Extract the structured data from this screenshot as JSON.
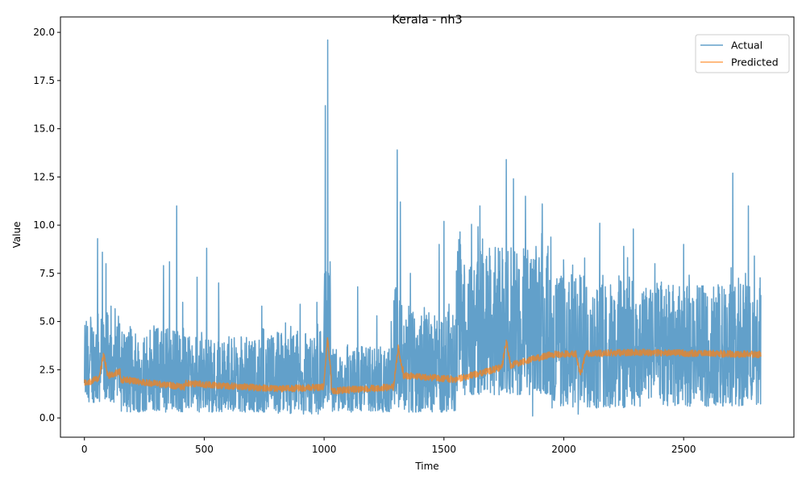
{
  "chart_data": {
    "type": "line",
    "title": "Kerala - nh3",
    "xlabel": "Time",
    "ylabel": "Value",
    "xlim": [
      -100,
      2960
    ],
    "ylim": [
      -1,
      20.8
    ],
    "xticks": [
      0,
      500,
      1000,
      1500,
      2000,
      2500
    ],
    "yticks": [
      0.0,
      2.5,
      5.0,
      7.5,
      10.0,
      12.5,
      15.0,
      17.5,
      20.0
    ],
    "xtick_labels": [
      "0",
      "500",
      "1000",
      "1500",
      "2000",
      "2500"
    ],
    "ytick_labels": [
      "0.0",
      "2.5",
      "5.0",
      "7.5",
      "10.0",
      "12.5",
      "15.0",
      "17.5",
      "20.0"
    ],
    "legend_position": "upper right",
    "grid": false,
    "series_count": 2823,
    "series": [
      {
        "name": "Actual",
        "color": "#1f77b4",
        "opacity": 0.7
      },
      {
        "name": "Predicted",
        "color": "#ff7f0e",
        "opacity": 0.7
      }
    ],
    "segments": [
      {
        "x0": 0,
        "x1": 150,
        "pred_start": 1.8,
        "pred_end": 2.4,
        "pred_peak": 3.3,
        "peak_at": 80,
        "act_range": [
          0.8,
          5.5
        ],
        "act_peaks": [
          [
            55,
            9.3
          ],
          [
            75,
            8.6
          ],
          [
            90,
            8.0
          ]
        ]
      },
      {
        "x0": 150,
        "x1": 420,
        "pred_start": 2.0,
        "pred_end": 1.6,
        "act_range": [
          0.3,
          4.8
        ],
        "act_peaks": [
          [
            330,
            7.9
          ],
          [
            355,
            8.1
          ],
          [
            385,
            11.0
          ],
          [
            410,
            6.0
          ]
        ]
      },
      {
        "x0": 420,
        "x1": 800,
        "pred_start": 1.8,
        "pred_end": 1.5,
        "act_range": [
          0.3,
          4.2
        ],
        "act_peaks": [
          [
            470,
            7.3
          ],
          [
            510,
            8.8
          ],
          [
            560,
            7.0
          ],
          [
            740,
            5.8
          ]
        ]
      },
      {
        "x0": 800,
        "x1": 1000,
        "pred_start": 1.5,
        "pred_end": 1.6,
        "act_range": [
          0.2,
          4.5
        ],
        "act_peaks": [
          [
            810,
            4.4
          ],
          [
            860,
            4.2
          ],
          [
            900,
            5.9
          ],
          [
            970,
            6.0
          ]
        ]
      },
      {
        "x0": 1000,
        "x1": 1030,
        "pred_start": 1.6,
        "pred_end": 1.6,
        "pred_peak": 4.2,
        "peak_at": 1015,
        "act_range": [
          0.3,
          8.0
        ],
        "act_peaks": [
          [
            1005,
            16.2
          ],
          [
            1015,
            19.6
          ],
          [
            1025,
            8.1
          ]
        ]
      },
      {
        "x0": 1030,
        "x1": 1290,
        "pred_start": 1.4,
        "pred_end": 1.6,
        "act_range": [
          0.3,
          3.8
        ],
        "act_peaks": [
          [
            1140,
            6.8
          ],
          [
            1220,
            5.3
          ],
          [
            1280,
            5.0
          ]
        ]
      },
      {
        "x0": 1290,
        "x1": 1330,
        "pred_start": 1.8,
        "pred_end": 2.5,
        "pred_peak": 3.7,
        "peak_at": 1310,
        "act_range": [
          0.5,
          7.0
        ],
        "act_peaks": [
          [
            1305,
            13.9
          ],
          [
            1318,
            11.2
          ]
        ]
      },
      {
        "x0": 1330,
        "x1": 1550,
        "pred_start": 2.2,
        "pred_end": 2.0,
        "act_range": [
          0.3,
          5.5
        ],
        "act_peaks": [
          [
            1360,
            7.5
          ],
          [
            1480,
            9.0
          ],
          [
            1500,
            10.2
          ]
        ]
      },
      {
        "x0": 1550,
        "x1": 1950,
        "pred_start": 2.0,
        "pred_end": 3.3,
        "pred_peak": 4.0,
        "peak_at": 1760,
        "act_range": [
          1.2,
          9.0
        ],
        "act_peaks": [
          [
            1650,
            11.0
          ],
          [
            1760,
            13.4
          ],
          [
            1790,
            12.4
          ],
          [
            1840,
            11.5
          ],
          [
            1870,
            0.1
          ],
          [
            1910,
            11.1
          ]
        ]
      },
      {
        "x0": 1950,
        "x1": 2300,
        "pred_start": 3.3,
        "pred_end": 3.4,
        "pred_dip": 2.2,
        "dip_at": 2070,
        "act_range": [
          0.5,
          7.5
        ],
        "act_peaks": [
          [
            2060,
            0.2
          ],
          [
            2150,
            10.1
          ],
          [
            2250,
            8.9
          ],
          [
            2290,
            9.8
          ]
        ]
      },
      {
        "x0": 2300,
        "x1": 2823,
        "pred_start": 3.4,
        "pred_end": 3.3,
        "act_range": [
          0.6,
          7.0
        ],
        "act_peaks": [
          [
            2380,
            8.0
          ],
          [
            2500,
            9.0
          ],
          [
            2705,
            12.7
          ],
          [
            2770,
            11.0
          ],
          [
            2795,
            8.4
          ]
        ]
      }
    ]
  }
}
